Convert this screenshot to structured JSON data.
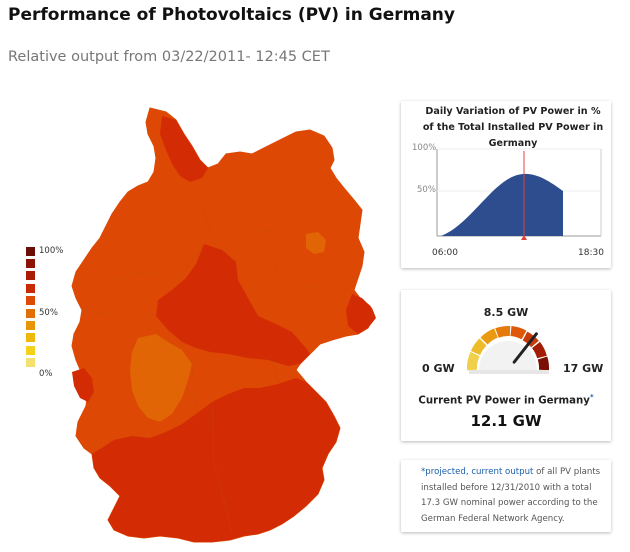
{
  "title": "Performance of Photovoltaics (PV) in Germany",
  "subtitle": "Relative output from 03/22/2011- 12:45 CET",
  "legend": {
    "labels": [
      "100%",
      "50%",
      "0%"
    ],
    "colors": [
      "#6b0e05",
      "#8b1405",
      "#a91d05",
      "#c72a04",
      "#dd4a05",
      "#e26e06",
      "#e89407",
      "#eeb80a",
      "#f2d21a",
      "#f3e06d"
    ]
  },
  "map": {
    "region_colors": {
      "dark": "#d32c05",
      "medium": "#dd4904",
      "light": "#e16505"
    }
  },
  "daily_chart": {
    "title": "Daily Variation of PV Power in % of the Total Installed PV Power in Germany",
    "y_ticks": [
      "100%",
      "50%"
    ],
    "x_labels": [
      "06:00",
      "18:30"
    ],
    "current_time_marker_color": "#e0433a",
    "area_color": "#2d4d8f"
  },
  "gauge": {
    "min_label": "0 GW",
    "mid_label": "8.5 GW",
    "max_label": "17 GW",
    "min": 0,
    "max": 17,
    "value": 12.1,
    "label": "Current PV Power in Germany",
    "asterisk": "*",
    "value_text": "12.1 GW"
  },
  "note": {
    "highlight": "*projected, current output",
    "text": " of all PV plants installed before 12/31/2010 with a total 17.3 GW nominal power according to the German Federal Network Agency."
  }
}
